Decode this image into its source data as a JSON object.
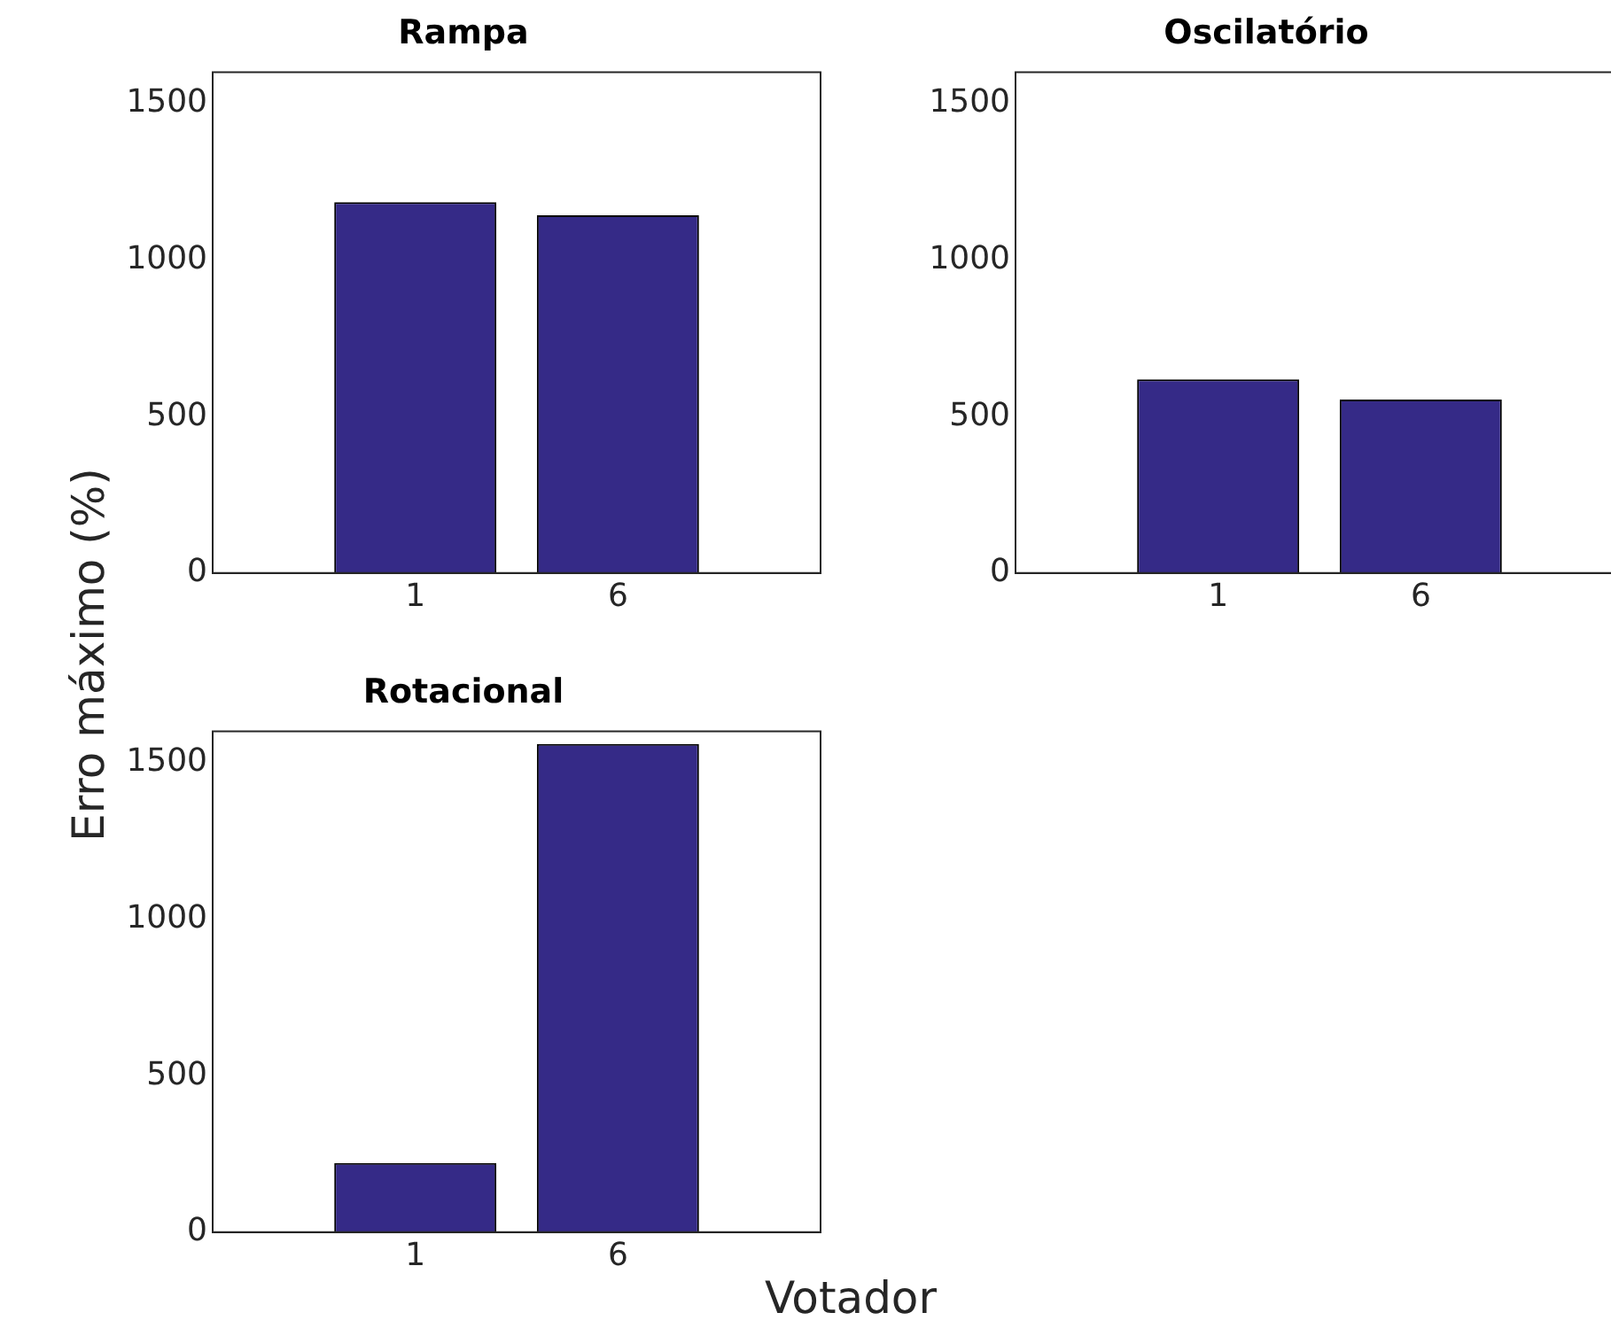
{
  "chart_data": [
    {
      "type": "bar",
      "title": "Rampa",
      "categories": [
        "1",
        "6"
      ],
      "values": [
        1185,
        1143
      ],
      "color": "#352a87",
      "ylim": [
        0,
        1600
      ],
      "yticks": [
        0,
        500,
        1000,
        1500
      ],
      "grid": false
    },
    {
      "type": "bar",
      "title": "Oscilatório",
      "categories": [
        "1",
        "6"
      ],
      "values": [
        619,
        554
      ],
      "color": "#352a87",
      "ylim": [
        0,
        1600
      ],
      "yticks": [
        0,
        500,
        1000,
        1500
      ],
      "grid": false
    },
    {
      "type": "bar",
      "title": "Rotacional",
      "categories": [
        "1",
        "6"
      ],
      "values": [
        221,
        1560
      ],
      "color": "#352a87",
      "ylim": [
        0,
        1600
      ],
      "yticks": [
        0,
        500,
        1000,
        1500
      ],
      "grid": false,
      "xlabel": "Votador",
      "ylabel": "Erro máximo (%)"
    }
  ]
}
